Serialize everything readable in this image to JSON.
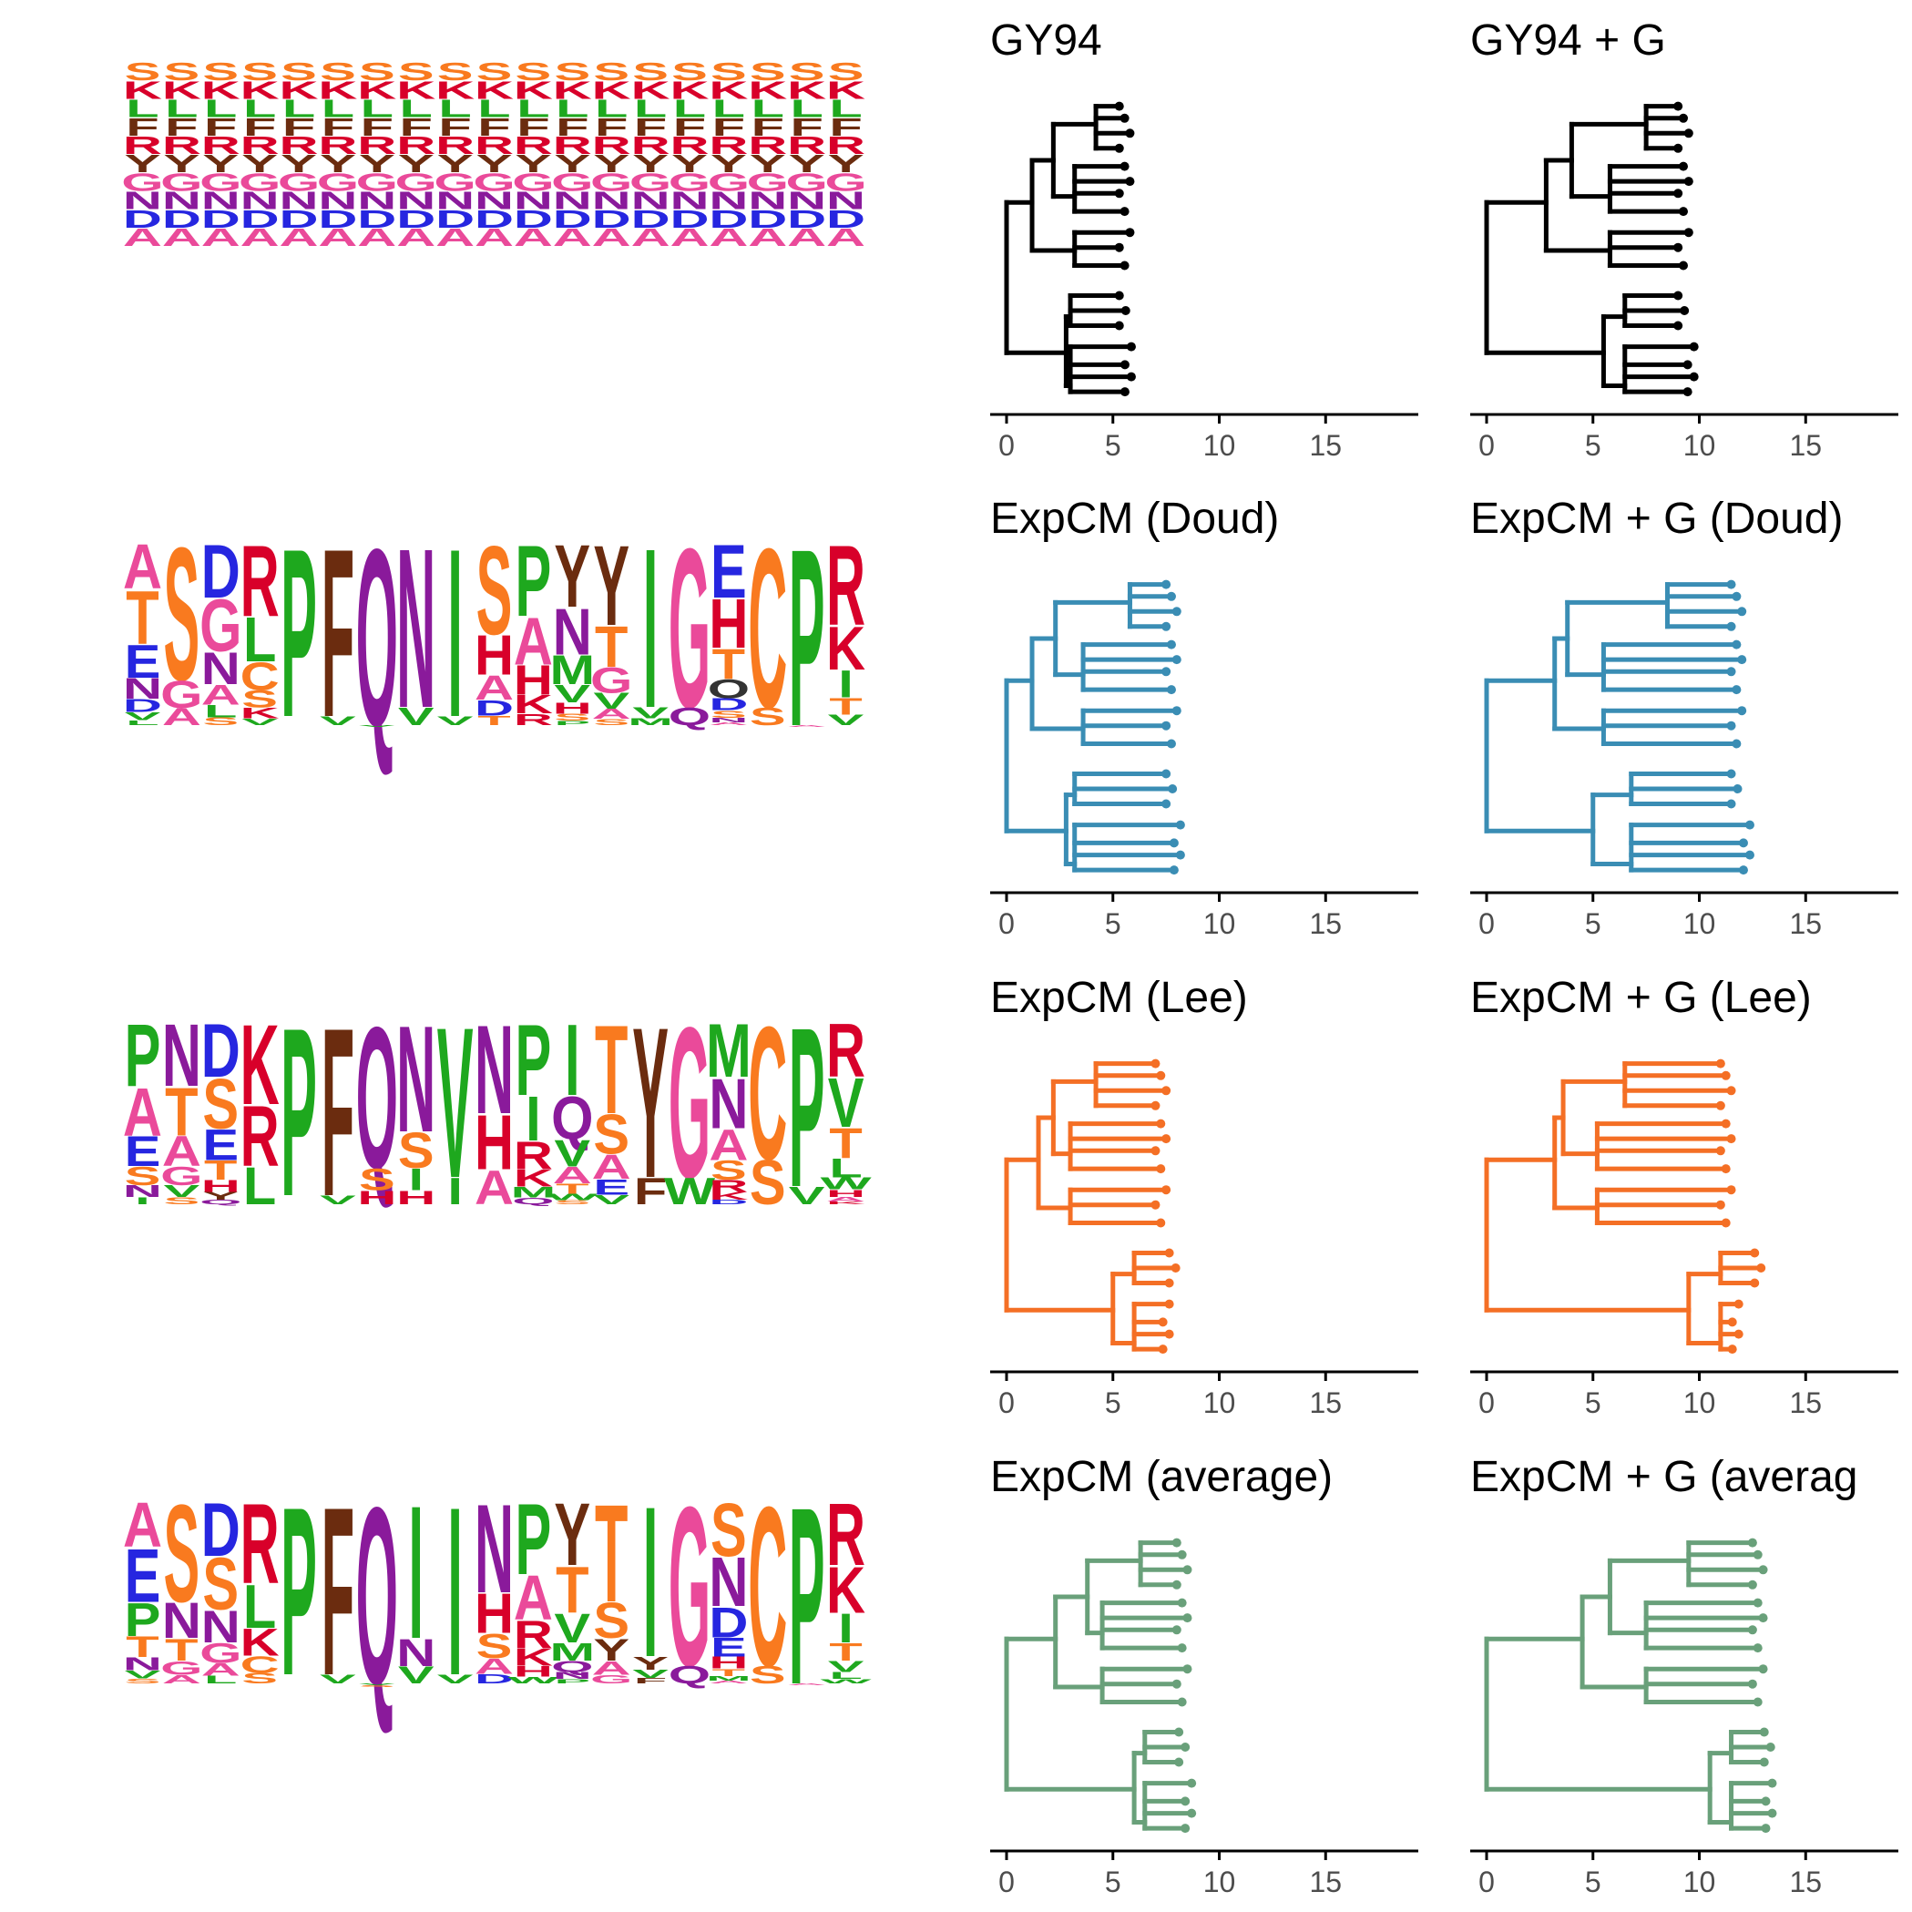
{
  "colors": {
    "gy94": "#000000",
    "doud": "#3a8db4",
    "lee": "#f46f25",
    "average": "#69a07a",
    "axis": "#000000",
    "tick_label": "#4d4d4d"
  },
  "logo_colors": {
    "S": "#f97a1f",
    "T": "#f97a1f",
    "K": "#d8002a",
    "R": "#d8002a",
    "H": "#d8002a",
    "I": "#1ea81e",
    "L": "#1ea81e",
    "V": "#1ea81e",
    "A": "#ea4a9a",
    "P": "#1ea81e",
    "F": "#6b2c0f",
    "Y": "#6b2c0f",
    "W": "#1ea81e",
    "M": "#1ea81e",
    "E": "#2626e0",
    "D": "#2626e0",
    "G": "#ea4a9a",
    "C": "#f97a1f",
    "N": "#8a1a9b",
    "Q": "#8a1a9b"
  },
  "chart_data": [
    {
      "type": "sequence-logo",
      "row": 1,
      "columns": [
        "SKLFRYGNDA",
        "SKLFRYGNDA",
        "SKLFRYGNDA",
        "SKLFRYGNDA",
        "SKLFRYGNDA",
        "SKLFRYGNDA",
        "SKLFRYGNDA",
        "SKLFRYGNDA",
        "SKLFRYGNDA",
        "SKLFRYGNDA",
        "SKLFRYGNDA",
        "SKLFRYGNDA",
        "SKLFRYGNDA",
        "SKLFRYGNDA",
        "SKLFRYGNDA",
        "SKLFRYGNDA",
        "SKLFRYGNDA",
        "SKLFRYGNDA",
        "SKLFRYGNDA"
      ]
    },
    {
      "type": "sequence-logo",
      "row": 2,
      "columns": [
        "ATENDVL",
        "SGA",
        "DGNALS",
        "RLCSKV",
        "P",
        "FV",
        "QV",
        "NV",
        "IV",
        "SHADT",
        "PAHKR",
        "YNMVHSP",
        "YTGVAS",
        "IVM",
        "GQ",
        "EHTODSNA",
        "CS",
        "PA",
        "RKITV"
      ]
    },
    {
      "type": "sequence-logo",
      "row": 3,
      "columns": [
        "PAESNI",
        "NTAGVS",
        "DSETHYQ",
        "KRL",
        "P",
        "FV",
        "QSH",
        "NSIH",
        "VI",
        "NHA",
        "PIRKMQ",
        "IQVATWS",
        "TSAEV",
        "YF",
        "GW",
        "MNASRKD",
        "CS",
        "PV",
        "RVTLWHAK"
      ]
    },
    {
      "type": "sequence-logo",
      "row": 4,
      "columns": [
        "AEPTNVS",
        "SNTGA",
        "DSNGAL",
        "RLKCS",
        "P",
        "FV",
        "QVS",
        "INV",
        "IV",
        "NHSAD",
        "PARKHW",
        "YTVMQNP",
        "TSYAG",
        "IYVF",
        "GQ",
        "SNDEHTMA",
        "CS",
        "PA",
        "RKITVLW"
      ]
    },
    {
      "type": "tree",
      "title": "GY94",
      "model": "GY94",
      "gamma": false,
      "color_key": "gy94",
      "xlim": [
        0,
        18.5
      ],
      "xticks": [
        0,
        5,
        10,
        15
      ],
      "tip_x_approx": 5.3
    },
    {
      "type": "tree",
      "title": "GY94 + G",
      "model": "GY94",
      "gamma": true,
      "color_key": "gy94",
      "xlim": [
        0,
        18.5
      ],
      "xticks": [
        0,
        5,
        10,
        15
      ],
      "tip_x_approx": 9.0
    },
    {
      "type": "tree",
      "title": "ExpCM (Doud)",
      "model": "ExpCM",
      "gamma": false,
      "color_key": "doud",
      "xlim": [
        0,
        18.5
      ],
      "xticks": [
        0,
        5,
        10,
        15
      ],
      "tip_x_approx": 7.5
    },
    {
      "type": "tree",
      "title": "ExpCM + G (Doud)",
      "model": "ExpCM",
      "gamma": true,
      "color_key": "doud",
      "xlim": [
        0,
        18.5
      ],
      "xticks": [
        0,
        5,
        10,
        15
      ],
      "tip_x_approx": 11.5
    },
    {
      "type": "tree",
      "title": "ExpCM (Lee)",
      "model": "ExpCM",
      "gamma": false,
      "color_key": "lee",
      "xlim": [
        0,
        18.5
      ],
      "xticks": [
        0,
        5,
        10,
        15
      ],
      "tip_x_approx": 7.0
    },
    {
      "type": "tree",
      "title": "ExpCM + G (Lee)",
      "model": "ExpCM",
      "gamma": true,
      "color_key": "lee",
      "xlim": [
        0,
        18.5
      ],
      "xticks": [
        0,
        5,
        10,
        15
      ],
      "tip_x_approx": 11.0
    },
    {
      "type": "tree",
      "title": "ExpCM (average)",
      "model": "ExpCM",
      "gamma": false,
      "color_key": "average",
      "xlim": [
        0,
        18.5
      ],
      "xticks": [
        0,
        5,
        10,
        15
      ],
      "tip_x_approx": 8.0
    },
    {
      "type": "tree",
      "title": "ExpCM + G (averag",
      "model": "ExpCM",
      "gamma": true,
      "color_key": "average",
      "xlim": [
        0,
        18.5
      ],
      "xticks": [
        0,
        5,
        10,
        15
      ],
      "tip_x_approx": 12.5
    }
  ],
  "trees": {
    "gy94": {
      "a": 0,
      "b": 1.2,
      "c": 2.2,
      "d": 3.2,
      "e": 4.2,
      "f": 2.8,
      "g": 3.0,
      "h": 5.0,
      "tip": 5.3
    },
    "gy94g": {
      "a": 0,
      "b": 2.8,
      "c": 4.0,
      "d": 5.8,
      "e": 7.5,
      "f": 5.5,
      "g": 6.5,
      "h": 8.5,
      "tip": 9.0
    },
    "doud": {
      "a": 0,
      "b": 1.2,
      "c": 2.3,
      "d": 3.6,
      "e": 5.8,
      "f": 2.8,
      "g": 3.2,
      "h": 5.0,
      "tip": 7.5
    },
    "doudg": {
      "a": 0,
      "b": 3.2,
      "c": 3.8,
      "d": 5.5,
      "e": 8.5,
      "f": 5.0,
      "g": 6.8,
      "h": 9.0,
      "tip": 11.5
    },
    "lee": {
      "a": 0,
      "b": 1.5,
      "c": 2.2,
      "d": 3.0,
      "e": 4.2,
      "f": 5.0,
      "g": 6.0,
      "h": 8.5,
      "tip": 7.0
    },
    "leeg": {
      "a": 0,
      "b": 3.2,
      "c": 3.6,
      "d": 5.2,
      "e": 6.5,
      "f": 9.5,
      "g": 11.0,
      "h": 14.0,
      "tip": 11.0
    },
    "avg": {
      "a": 0,
      "b": 2.3,
      "c": 3.8,
      "d": 4.5,
      "e": 6.3,
      "f": 6.0,
      "g": 6.5,
      "h": 9.0,
      "tip": 8.0
    },
    "avgg": {
      "a": 0,
      "b": 4.5,
      "c": 5.8,
      "d": 7.5,
      "e": 9.5,
      "f": 10.5,
      "g": 11.5,
      "h": 14.5,
      "tip": 12.5
    }
  }
}
